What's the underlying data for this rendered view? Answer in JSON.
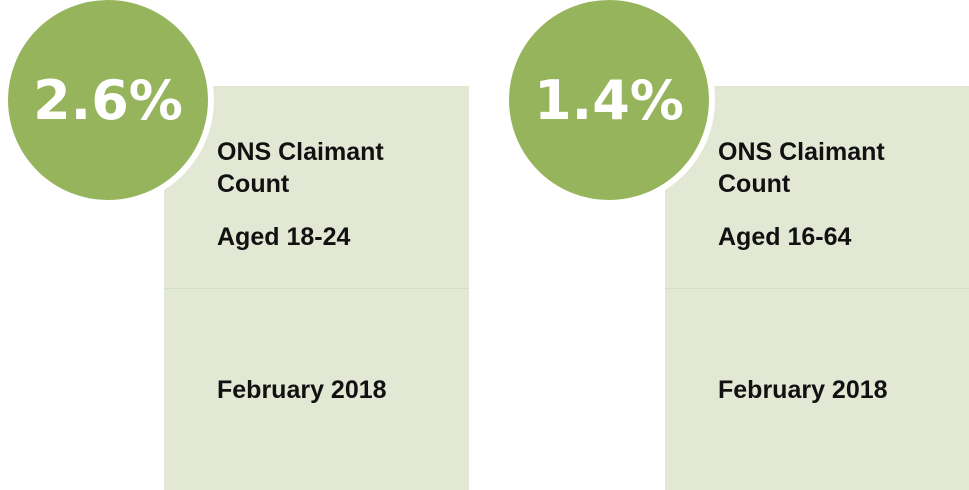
{
  "cards": [
    {
      "stat": "2.6%",
      "title": "ONS Claimant Count",
      "subtitle": "Aged 18-24",
      "date": "February 2018"
    },
    {
      "stat": "1.4%",
      "title": "ONS Claimant Count",
      "subtitle": "Aged 16-64",
      "date": "February 2018"
    }
  ]
}
